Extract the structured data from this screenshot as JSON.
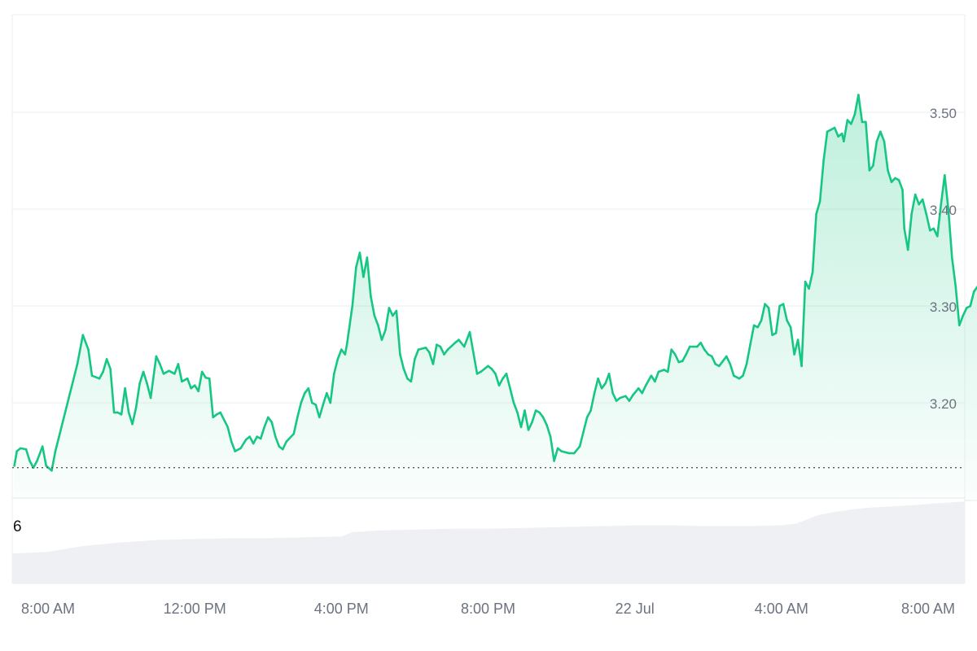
{
  "chart_data": {
    "type": "area",
    "y_axis_position": "right",
    "grid": "horizontal",
    "ylim": [
      3.1,
      3.6
    ],
    "y_ticks": [
      3.2,
      3.3,
      3.4,
      3.5
    ],
    "y_tick_labels": [
      "3.20",
      "3.30",
      "3.40",
      "3.50"
    ],
    "x_tick_labels": [
      {
        "hour": 0,
        "label": "8:00 AM"
      },
      {
        "hour": 4,
        "label": "12:00 PM"
      },
      {
        "hour": 8,
        "label": "4:00 PM"
      },
      {
        "hour": 12,
        "label": "8:00 PM"
      },
      {
        "hour": 16,
        "label": "22 Jul"
      },
      {
        "hour": 20,
        "label": "4:00 AM"
      },
      {
        "hour": 24,
        "label": "8:00 AM"
      }
    ],
    "reference_price": 3.133,
    "colors": {
      "up": "#16c784",
      "down": "#ea3943",
      "grid": "#eeeeee",
      "reference": "#555555",
      "volume": "#eef0f4"
    },
    "price_series": [
      [
        -0.92,
        3.135
      ],
      [
        -0.85,
        3.15
      ],
      [
        -0.75,
        3.153
      ],
      [
        -0.6,
        3.152
      ],
      [
        -0.5,
        3.14
      ],
      [
        -0.4,
        3.133
      ],
      [
        -0.3,
        3.14
      ],
      [
        -0.15,
        3.155
      ],
      [
        -0.05,
        3.135
      ],
      [
        0.1,
        3.13
      ],
      [
        0.2,
        3.15
      ],
      [
        0.4,
        3.18
      ],
      [
        0.6,
        3.21
      ],
      [
        0.8,
        3.24
      ],
      [
        0.95,
        3.27
      ],
      [
        1.1,
        3.255
      ],
      [
        1.2,
        3.228
      ],
      [
        1.4,
        3.225
      ],
      [
        1.5,
        3.232
      ],
      [
        1.6,
        3.245
      ],
      [
        1.7,
        3.235
      ],
      [
        1.8,
        3.19
      ],
      [
        1.9,
        3.19
      ],
      [
        2.0,
        3.188
      ],
      [
        2.1,
        3.215
      ],
      [
        2.2,
        3.19
      ],
      [
        2.3,
        3.178
      ],
      [
        2.4,
        3.195
      ],
      [
        2.5,
        3.22
      ],
      [
        2.6,
        3.232
      ],
      [
        2.7,
        3.22
      ],
      [
        2.8,
        3.205
      ],
      [
        2.95,
        3.248
      ],
      [
        3.05,
        3.24
      ],
      [
        3.15,
        3.23
      ],
      [
        3.3,
        3.233
      ],
      [
        3.45,
        3.23
      ],
      [
        3.55,
        3.24
      ],
      [
        3.65,
        3.222
      ],
      [
        3.8,
        3.225
      ],
      [
        3.9,
        3.215
      ],
      [
        4.0,
        3.218
      ],
      [
        4.1,
        3.212
      ],
      [
        4.2,
        3.232
      ],
      [
        4.3,
        3.226
      ],
      [
        4.4,
        3.225
      ],
      [
        4.5,
        3.185
      ],
      [
        4.6,
        3.188
      ],
      [
        4.7,
        3.19
      ],
      [
        4.9,
        3.175
      ],
      [
        5.0,
        3.16
      ],
      [
        5.1,
        3.15
      ],
      [
        5.25,
        3.153
      ],
      [
        5.4,
        3.162
      ],
      [
        5.5,
        3.165
      ],
      [
        5.6,
        3.158
      ],
      [
        5.7,
        3.165
      ],
      [
        5.8,
        3.163
      ],
      [
        5.9,
        3.175
      ],
      [
        6.0,
        3.185
      ],
      [
        6.1,
        3.18
      ],
      [
        6.2,
        3.165
      ],
      [
        6.3,
        3.155
      ],
      [
        6.4,
        3.152
      ],
      [
        6.5,
        3.16
      ],
      [
        6.7,
        3.168
      ],
      [
        6.8,
        3.185
      ],
      [
        6.9,
        3.2
      ],
      [
        7.0,
        3.21
      ],
      [
        7.1,
        3.215
      ],
      [
        7.2,
        3.2
      ],
      [
        7.3,
        3.198
      ],
      [
        7.4,
        3.185
      ],
      [
        7.5,
        3.198
      ],
      [
        7.6,
        3.21
      ],
      [
        7.7,
        3.2
      ],
      [
        7.8,
        3.23
      ],
      [
        7.9,
        3.245
      ],
      [
        8.0,
        3.255
      ],
      [
        8.1,
        3.25
      ],
      [
        8.15,
        3.26
      ],
      [
        8.3,
        3.3
      ],
      [
        8.4,
        3.34
      ],
      [
        8.5,
        3.355
      ],
      [
        8.6,
        3.33
      ],
      [
        8.7,
        3.35
      ],
      [
        8.8,
        3.31
      ],
      [
        8.9,
        3.29
      ],
      [
        9.0,
        3.28
      ],
      [
        9.1,
        3.265
      ],
      [
        9.2,
        3.275
      ],
      [
        9.3,
        3.298
      ],
      [
        9.4,
        3.29
      ],
      [
        9.5,
        3.295
      ],
      [
        9.6,
        3.25
      ],
      [
        9.7,
        3.235
      ],
      [
        9.8,
        3.225
      ],
      [
        9.9,
        3.222
      ],
      [
        10.0,
        3.245
      ],
      [
        10.1,
        3.255
      ],
      [
        10.3,
        3.257
      ],
      [
        10.4,
        3.252
      ],
      [
        10.5,
        3.24
      ],
      [
        10.6,
        3.26
      ],
      [
        10.7,
        3.258
      ],
      [
        10.8,
        3.25
      ],
      [
        10.9,
        3.255
      ],
      [
        11.1,
        3.262
      ],
      [
        11.2,
        3.265
      ],
      [
        11.35,
        3.258
      ],
      [
        11.5,
        3.273
      ],
      [
        11.7,
        3.23
      ],
      [
        11.8,
        3.232
      ],
      [
        11.9,
        3.235
      ],
      [
        12.0,
        3.238
      ],
      [
        12.1,
        3.235
      ],
      [
        12.2,
        3.23
      ],
      [
        12.3,
        3.218
      ],
      [
        12.4,
        3.225
      ],
      [
        12.5,
        3.23
      ],
      [
        12.6,
        3.215
      ],
      [
        12.7,
        3.2
      ],
      [
        12.8,
        3.19
      ],
      [
        12.9,
        3.175
      ],
      [
        13.0,
        3.192
      ],
      [
        13.1,
        3.172
      ],
      [
        13.2,
        3.18
      ],
      [
        13.3,
        3.192
      ],
      [
        13.4,
        3.19
      ],
      [
        13.5,
        3.185
      ],
      [
        13.6,
        3.177
      ],
      [
        13.7,
        3.165
      ],
      [
        13.8,
        3.14
      ],
      [
        13.9,
        3.153
      ],
      [
        14.0,
        3.15
      ],
      [
        14.2,
        3.148
      ],
      [
        14.35,
        3.148
      ],
      [
        14.5,
        3.155
      ],
      [
        14.6,
        3.17
      ],
      [
        14.7,
        3.185
      ],
      [
        14.8,
        3.192
      ],
      [
        14.9,
        3.21
      ],
      [
        15.0,
        3.225
      ],
      [
        15.1,
        3.215
      ],
      [
        15.2,
        3.22
      ],
      [
        15.3,
        3.23
      ],
      [
        15.4,
        3.21
      ],
      [
        15.5,
        3.202
      ],
      [
        15.6,
        3.205
      ],
      [
        15.75,
        3.207
      ],
      [
        15.85,
        3.202
      ],
      [
        15.95,
        3.208
      ],
      [
        16.1,
        3.215
      ],
      [
        16.2,
        3.21
      ],
      [
        16.3,
        3.218
      ],
      [
        16.45,
        3.228
      ],
      [
        16.55,
        3.222
      ],
      [
        16.65,
        3.232
      ],
      [
        16.8,
        3.234
      ],
      [
        16.9,
        3.232
      ],
      [
        17.0,
        3.255
      ],
      [
        17.1,
        3.25
      ],
      [
        17.2,
        3.242
      ],
      [
        17.3,
        3.243
      ],
      [
        17.4,
        3.25
      ],
      [
        17.5,
        3.258
      ],
      [
        17.6,
        3.258
      ],
      [
        17.7,
        3.258
      ],
      [
        17.8,
        3.262
      ],
      [
        17.9,
        3.255
      ],
      [
        18.0,
        3.25
      ],
      [
        18.1,
        3.248
      ],
      [
        18.2,
        3.24
      ],
      [
        18.3,
        3.238
      ],
      [
        18.4,
        3.243
      ],
      [
        18.5,
        3.248
      ],
      [
        18.6,
        3.24
      ],
      [
        18.7,
        3.228
      ],
      [
        18.85,
        3.225
      ],
      [
        18.95,
        3.228
      ],
      [
        19.05,
        3.24
      ],
      [
        19.15,
        3.26
      ],
      [
        19.25,
        3.28
      ],
      [
        19.35,
        3.278
      ],
      [
        19.45,
        3.285
      ],
      [
        19.55,
        3.302
      ],
      [
        19.65,
        3.298
      ],
      [
        19.75,
        3.27
      ],
      [
        19.85,
        3.272
      ],
      [
        19.95,
        3.3
      ],
      [
        20.05,
        3.302
      ],
      [
        20.15,
        3.285
      ],
      [
        20.25,
        3.278
      ],
      [
        20.35,
        3.25
      ],
      [
        20.45,
        3.265
      ],
      [
        20.55,
        3.238
      ],
      [
        20.65,
        3.325
      ],
      [
        20.75,
        3.318
      ],
      [
        20.85,
        3.335
      ],
      [
        20.95,
        3.395
      ],
      [
        21.05,
        3.408
      ],
      [
        21.15,
        3.45
      ],
      [
        21.25,
        3.48
      ],
      [
        21.45,
        3.484
      ],
      [
        21.55,
        3.475
      ],
      [
        21.65,
        3.478
      ],
      [
        21.7,
        3.47
      ],
      [
        21.8,
        3.492
      ],
      [
        21.9,
        3.488
      ],
      [
        22.0,
        3.498
      ],
      [
        22.1,
        3.518
      ],
      [
        22.2,
        3.49
      ],
      [
        22.3,
        3.49
      ],
      [
        22.4,
        3.44
      ],
      [
        22.5,
        3.445
      ],
      [
        22.6,
        3.47
      ],
      [
        22.7,
        3.48
      ],
      [
        22.8,
        3.47
      ],
      [
        22.9,
        3.44
      ],
      [
        23.0,
        3.428
      ],
      [
        23.1,
        3.432
      ],
      [
        23.2,
        3.43
      ],
      [
        23.3,
        3.42
      ],
      [
        23.35,
        3.38
      ],
      [
        23.45,
        3.358
      ],
      [
        23.55,
        3.395
      ],
      [
        23.65,
        3.415
      ],
      [
        23.75,
        3.405
      ],
      [
        23.85,
        3.41
      ],
      [
        23.95,
        3.395
      ],
      [
        24.05,
        3.378
      ],
      [
        24.15,
        3.38
      ],
      [
        24.25,
        3.372
      ],
      [
        24.35,
        3.405
      ],
      [
        24.45,
        3.435
      ],
      [
        24.55,
        3.4
      ],
      [
        24.65,
        3.35
      ],
      [
        24.75,
        3.32
      ],
      [
        24.85,
        3.28
      ],
      [
        24.95,
        3.29
      ],
      [
        25.05,
        3.298
      ],
      [
        25.15,
        3.3
      ],
      [
        25.25,
        3.315
      ],
      [
        25.35,
        3.32
      ],
      [
        25.45,
        3.305
      ],
      [
        25.55,
        3.298
      ],
      [
        25.65,
        3.308
      ],
      [
        25.75,
        3.3
      ],
      [
        25.85,
        3.278
      ],
      [
        25.95,
        3.295
      ],
      [
        26.05,
        3.292
      ],
      [
        26.15,
        3.293
      ],
      [
        26.25,
        3.31
      ],
      [
        26.35,
        3.32
      ],
      [
        26.45,
        3.318
      ],
      [
        26.55,
        3.34
      ],
      [
        26.65,
        3.335
      ],
      [
        26.75,
        3.35
      ],
      [
        26.85,
        3.355
      ],
      [
        26.95,
        3.335
      ],
      [
        27.05,
        3.33
      ],
      [
        27.2,
        3.342
      ],
      [
        27.35,
        3.345
      ],
      [
        27.5,
        3.345
      ],
      [
        27.6,
        3.325
      ],
      [
        27.7,
        3.328
      ],
      [
        27.8,
        3.355
      ],
      [
        27.9,
        3.345
      ],
      [
        28.0,
        3.34
      ],
      [
        28.1,
        3.33
      ]
    ],
    "volume_series": [
      [
        -0.95,
        0.35
      ],
      [
        0.0,
        0.37
      ],
      [
        1.0,
        0.44
      ],
      [
        2.0,
        0.48
      ],
      [
        3.0,
        0.51
      ],
      [
        4.0,
        0.52
      ],
      [
        5.0,
        0.53
      ],
      [
        6.0,
        0.53
      ],
      [
        7.0,
        0.54
      ],
      [
        8.0,
        0.55
      ],
      [
        8.3,
        0.6
      ],
      [
        9.0,
        0.62
      ],
      [
        10.0,
        0.63
      ],
      [
        11.0,
        0.64
      ],
      [
        12.0,
        0.64
      ],
      [
        13.0,
        0.65
      ],
      [
        14.0,
        0.66
      ],
      [
        15.0,
        0.67
      ],
      [
        16.0,
        0.68
      ],
      [
        17.0,
        0.68
      ],
      [
        18.0,
        0.67
      ],
      [
        19.0,
        0.67
      ],
      [
        20.0,
        0.68
      ],
      [
        20.4,
        0.7
      ],
      [
        21.0,
        0.8
      ],
      [
        21.5,
        0.84
      ],
      [
        22.0,
        0.87
      ],
      [
        22.5,
        0.89
      ],
      [
        23.0,
        0.9
      ],
      [
        24.0,
        0.93
      ],
      [
        25.0,
        0.96
      ],
      [
        26.0,
        0.98
      ],
      [
        27.0,
        0.98
      ],
      [
        28.1,
        0.98
      ]
    ],
    "volume_axis_label": "6"
  }
}
